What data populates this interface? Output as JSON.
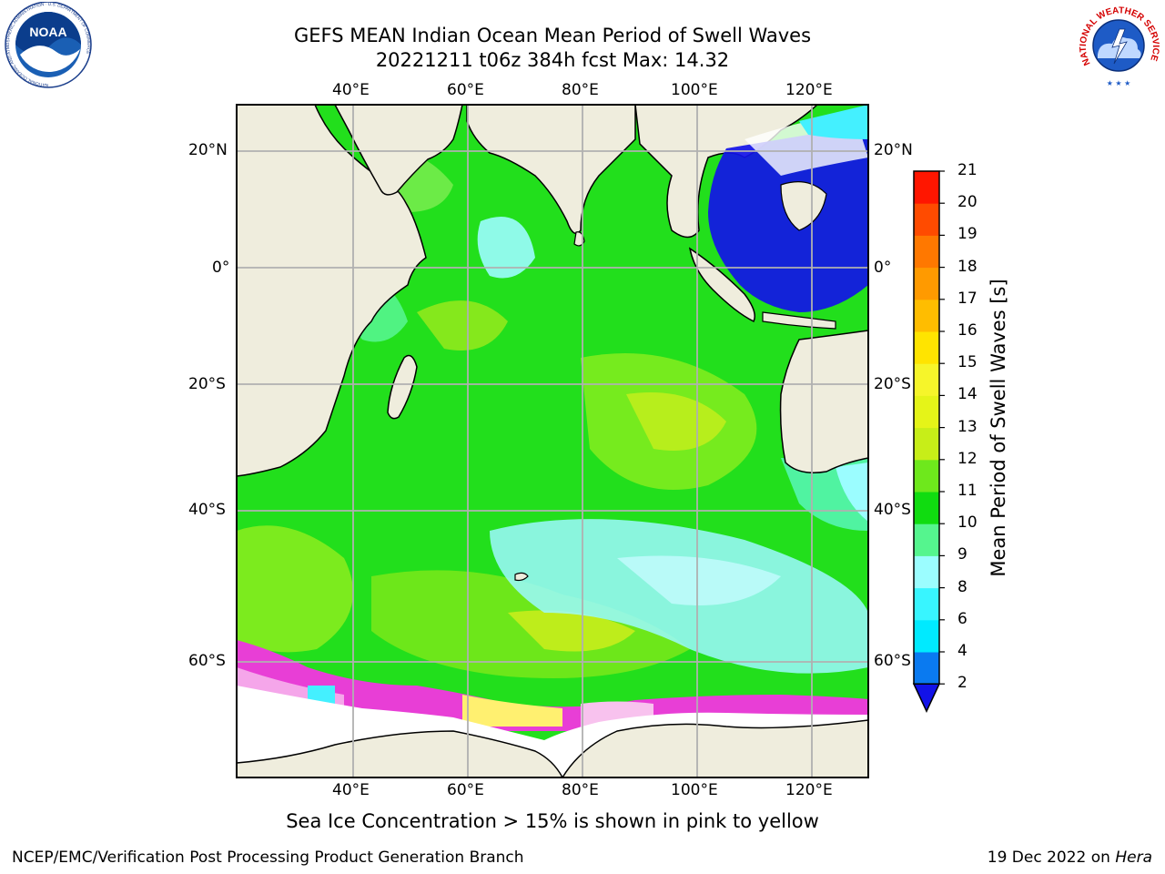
{
  "title": {
    "line1": "GEFS MEAN Indian Ocean Mean Period of Swell Waves",
    "line2": "20221211 t06z 384h fcst   Max: 14.32"
  },
  "map": {
    "lon_labels": [
      "40°E",
      "60°E",
      "80°E",
      "100°E",
      "120°E"
    ],
    "lat_labels": [
      "20°N",
      "0°",
      "20°S",
      "40°S",
      "60°S"
    ],
    "land_color": "#efeddd",
    "grid_color": "#b0b0b0"
  },
  "colorbar": {
    "label": "Mean Period of Swell Waves [s]",
    "ticks": [
      "2",
      "4",
      "6",
      "8",
      "9",
      "10",
      "11",
      "12",
      "13",
      "14",
      "15",
      "16",
      "17",
      "18",
      "19",
      "20",
      "21"
    ],
    "colors": [
      "#0a7af0",
      "#00eaff",
      "#38f5ff",
      "#9bfdff",
      "#55f58e",
      "#10dc10",
      "#6ee81c",
      "#c7ee18",
      "#e5f418",
      "#f6f52a",
      "#ffe400",
      "#ffbd00",
      "#ff9a00",
      "#ff7800",
      "#ff4b00",
      "#ff1600"
    ],
    "extend_color": "#1212e8"
  },
  "caption": "Sea Ice Concentration > 15% is shown in pink to yellow",
  "footer": {
    "left": "NCEP/EMC/Verification Post Processing Product Generation Branch",
    "right_prefix": "19 Dec 2022 on ",
    "right_italic": "Hera"
  },
  "logos": {
    "noaa": "NOAA",
    "noaa_ring": "NATIONAL OCEANIC AND ATMOSPHERIC ADMINISTRATION · U.S. DEPARTMENT OF COMMERCE",
    "nws_ring": "NATIONAL WEATHER SERVICE"
  }
}
